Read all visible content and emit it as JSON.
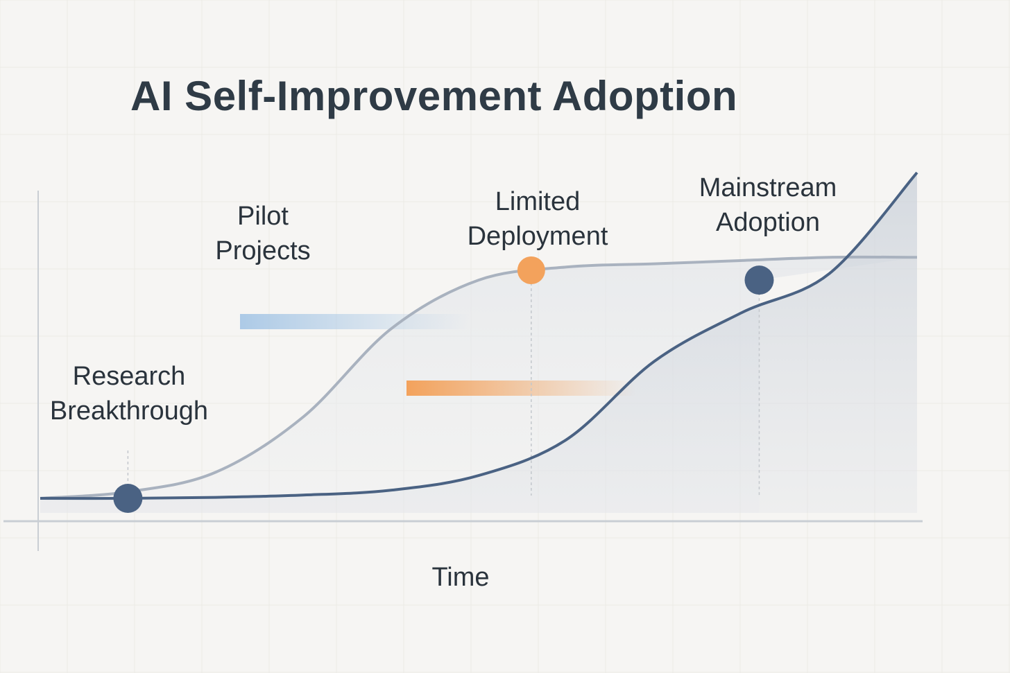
{
  "title": "AI Self-Improvement Adoption",
  "xlabel": "Time",
  "milestones": [
    {
      "line1": "Research",
      "line2": "Breakthrough"
    },
    {
      "line1": "Pilot",
      "line2": "Projects"
    },
    {
      "line1": "Limited",
      "line2": "Deployment"
    },
    {
      "line1": "Mainstream",
      "line2": "Adoption"
    }
  ],
  "colors": {
    "background": "#f6f5f3",
    "primary": "#4a6283",
    "secondary": "#a9b2bf",
    "accent_orange": "#f3a25c",
    "accent_blue": "#a9c8e6"
  },
  "chart_data": {
    "type": "line",
    "title": "AI Self-Improvement Adoption",
    "xlabel": "Time",
    "ylabel": "",
    "grid": true,
    "x": [
      0,
      10,
      20,
      30,
      40,
      50,
      60,
      70,
      80,
      90,
      100
    ],
    "series": [
      {
        "values": [
          0,
          0,
          0.3,
          1.0,
          2.5,
          7,
          18,
          42,
          57,
          69,
          100
        ]
      },
      {
        "values": [
          0,
          2,
          8,
          25,
          52,
          67,
          71,
          72,
          73,
          74,
          74
        ]
      }
    ],
    "markers": [
      {
        "label": "Research Breakthrough",
        "x": 10,
        "y": 0
      },
      {
        "label": "Limited Deployment",
        "x": 56,
        "y": 70
      },
      {
        "label": "Mainstream Adoption",
        "x": 82,
        "y": 67
      }
    ]
  }
}
